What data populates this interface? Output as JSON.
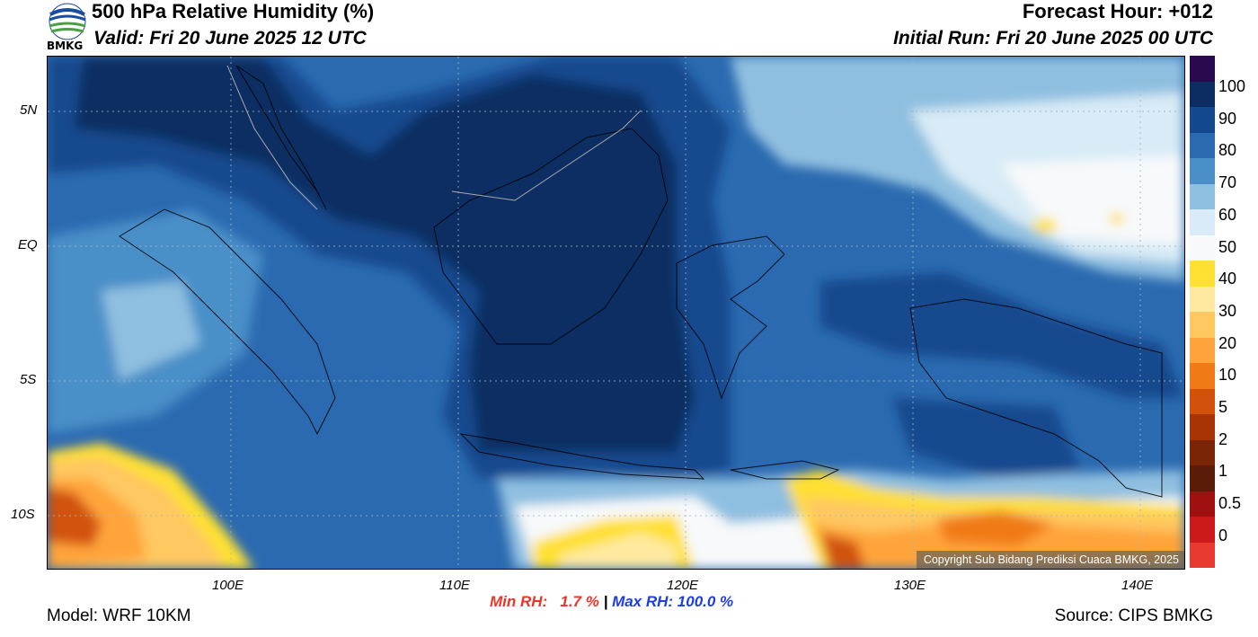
{
  "header": {
    "title": "500 hPa Relative Humidity (%)",
    "valid": "Valid: Fri 20 June 2025 12 UTC",
    "forecast_hour": "Forecast Hour: +012",
    "initial_run": "Initial Run: Fri 20 June 2025 00 UTC",
    "logo_text": "BMKG"
  },
  "axes": {
    "lat_labels": [
      "5N",
      "EQ",
      "5S",
      "10S"
    ],
    "lon_labels": [
      "100E",
      "110E",
      "120E",
      "130E",
      "140E"
    ]
  },
  "stats": {
    "min": "Min RH:   1.7 %",
    "separator": " | ",
    "max": "Max RH: 100.0 %"
  },
  "footer": {
    "model": "Model: WRF 10KM",
    "source": "Source: CIPS BMKG",
    "copyright": "Copyright Sub Bidang Prediksi Cuaca BMKG, 2025"
  },
  "colorbar": {
    "labels": [
      "100",
      "90",
      "80",
      "70",
      "60",
      "50",
      "40",
      "30",
      "20",
      "10",
      "5",
      "2",
      "1",
      "0.5",
      "0"
    ],
    "colors": [
      "#2a0a4e",
      "#0c2d62",
      "#14488e",
      "#2b6ab0",
      "#4a8fc8",
      "#8fbfe0",
      "#d8ebf6",
      "#f7f9fb",
      "#ffe033",
      "#ffe9a0",
      "#ffc860",
      "#ffa43a",
      "#f07a16",
      "#d2520b",
      "#a83304",
      "#7a2506",
      "#5a1c08",
      "#a01010",
      "#cc1a1a",
      "#e83a30"
    ]
  },
  "map": {
    "region": "Indonesia",
    "lat_range": [
      -12,
      7
    ],
    "lon_range": [
      92,
      142
    ]
  }
}
